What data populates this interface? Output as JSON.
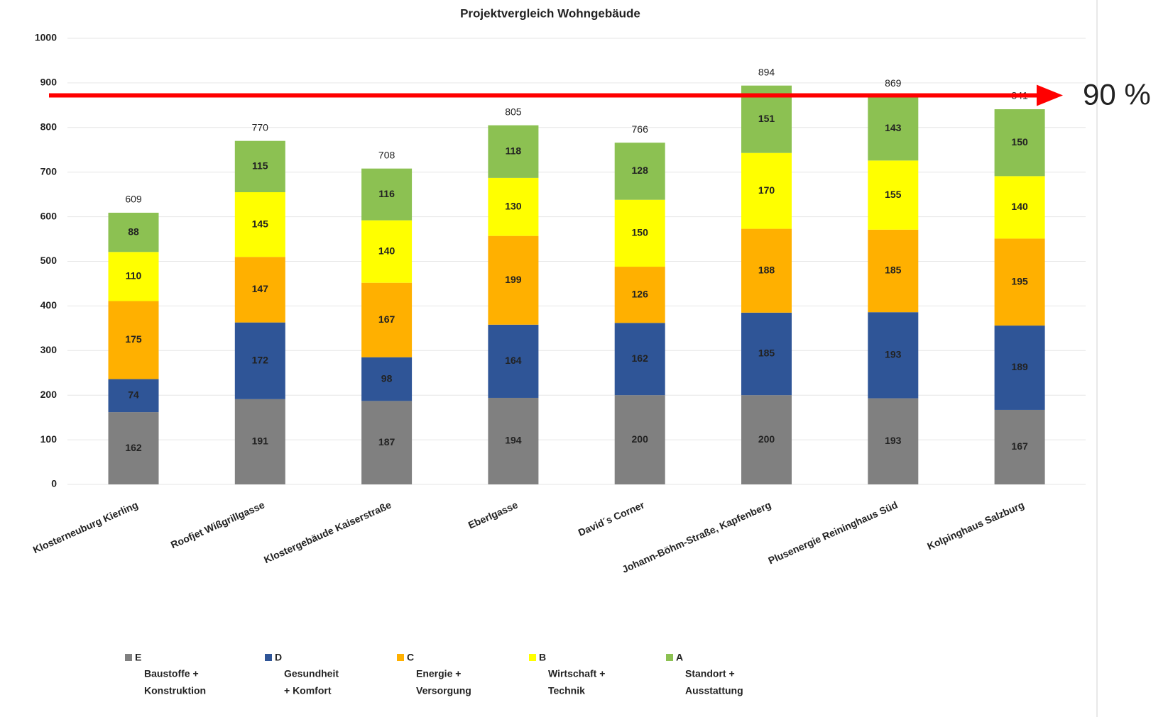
{
  "chart_data": {
    "type": "stacked_bar",
    "title": "Projektvergleich Wohngebäude",
    "categories": [
      "Klosterneuburg Kierling",
      "Roofjet Wißgrillgasse",
      "Klostergebäude Kaiserstraße",
      "Eberlgasse",
      "David´s Corner",
      "Johann-Böhm-Straße, Kapfenberg",
      "Plusenergie Reininghaus Süd",
      "Kolpinghaus Salzburg"
    ],
    "series": [
      {
        "name": "E",
        "label_lines": [
          "Baustoffe +",
          "Konstruktion"
        ],
        "color": "#808080",
        "values": [
          162,
          191,
          187,
          194,
          200,
          200,
          193,
          167
        ]
      },
      {
        "name": "D",
        "label_lines": [
          "Gesundheit",
          "+ Komfort"
        ],
        "color": "#2f5597",
        "values": [
          74,
          172,
          98,
          164,
          162,
          185,
          193,
          189
        ]
      },
      {
        "name": "C",
        "label_lines": [
          "Energie +",
          "Versorgung"
        ],
        "color": "#ffb000",
        "values": [
          175,
          147,
          167,
          199,
          126,
          188,
          185,
          195
        ]
      },
      {
        "name": "B",
        "label_lines": [
          "Wirtschaft +",
          "Technik"
        ],
        "color": "#ffff00",
        "values": [
          110,
          145,
          140,
          130,
          150,
          170,
          155,
          140
        ]
      },
      {
        "name": "A",
        "label_lines": [
          "Standort +",
          "Ausstattung"
        ],
        "color": "#8cc152",
        "values": [
          88,
          115,
          116,
          118,
          128,
          151,
          143,
          150
        ]
      }
    ],
    "totals": [
      609,
      770,
      708,
      805,
      766,
      894,
      869,
      841
    ],
    "ylim": [
      0,
      1000
    ],
    "yticks": [
      0,
      100,
      200,
      300,
      400,
      500,
      600,
      700,
      800,
      900,
      1000
    ],
    "grid": true,
    "reference_line": {
      "value": 872,
      "label": "90 %",
      "color": "#ff0000"
    }
  }
}
